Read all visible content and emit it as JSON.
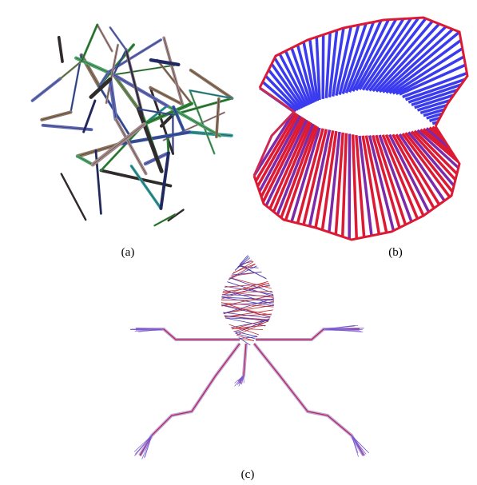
{
  "captions": {
    "a": "(a)",
    "b": "(b)",
    "c": "(c)"
  }
}
